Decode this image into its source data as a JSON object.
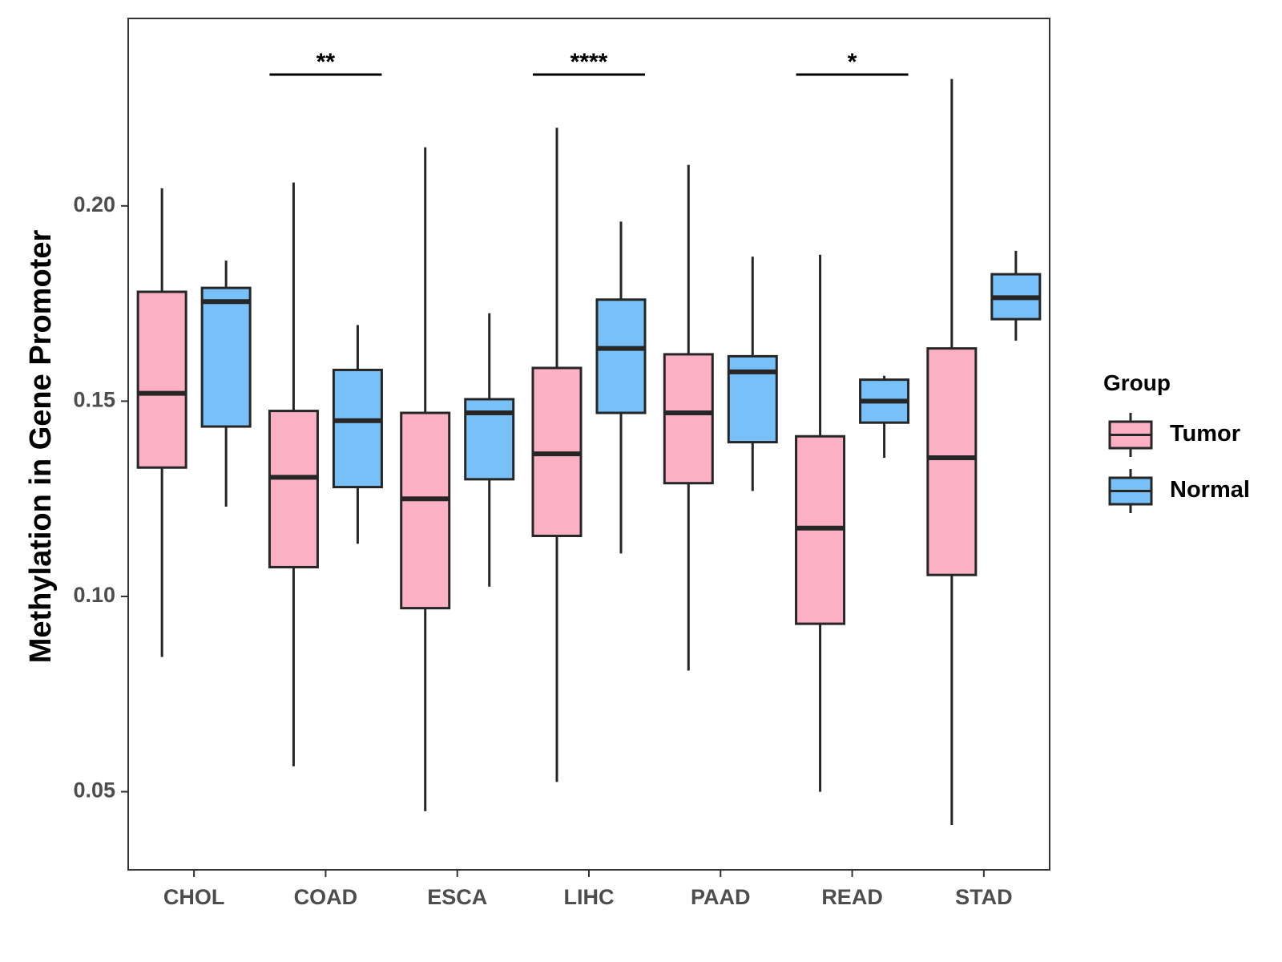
{
  "chart_data": {
    "type": "boxplot",
    "title": "",
    "xlabel": "",
    "ylabel": "Methylation in Gene Promoter",
    "ylim": [
      0.03,
      0.248
    ],
    "yticks": [
      "0.05",
      "0.10",
      "0.15",
      "0.20"
    ],
    "grid": false,
    "categories": [
      "CHOL",
      "COAD",
      "ESCA",
      "LIHC",
      "PAAD",
      "READ",
      "STAD"
    ],
    "legend": {
      "title": "Group",
      "position": "right",
      "entries": [
        {
          "name": "Tumor",
          "color": "#FBB1C3"
        },
        {
          "name": "Normal",
          "color": "#78C1F8"
        }
      ]
    },
    "series": [
      {
        "name": "Tumor",
        "color": "#FBB1C3",
        "boxes": [
          {
            "category": "CHOL",
            "min": 0.0845,
            "q1": 0.133,
            "median": 0.152,
            "q3": 0.178,
            "max": 0.2045
          },
          {
            "category": "COAD",
            "min": 0.0565,
            "q1": 0.1075,
            "median": 0.1305,
            "q3": 0.1475,
            "max": 0.206
          },
          {
            "category": "ESCA",
            "min": 0.045,
            "q1": 0.097,
            "median": 0.125,
            "q3": 0.147,
            "max": 0.215
          },
          {
            "category": "LIHC",
            "min": 0.0525,
            "q1": 0.1155,
            "median": 0.1365,
            "q3": 0.1585,
            "max": 0.22
          },
          {
            "category": "PAAD",
            "min": 0.081,
            "q1": 0.129,
            "median": 0.147,
            "q3": 0.162,
            "max": 0.2105
          },
          {
            "category": "READ",
            "min": 0.05,
            "q1": 0.093,
            "median": 0.1175,
            "q3": 0.141,
            "max": 0.1875
          },
          {
            "category": "STAD",
            "min": 0.0415,
            "q1": 0.1055,
            "median": 0.1355,
            "q3": 0.1635,
            "max": 0.2325
          }
        ]
      },
      {
        "name": "Normal",
        "color": "#78C1F8",
        "boxes": [
          {
            "category": "CHOL",
            "min": 0.123,
            "q1": 0.1435,
            "median": 0.1755,
            "q3": 0.179,
            "max": 0.186
          },
          {
            "category": "COAD",
            "min": 0.1135,
            "q1": 0.128,
            "median": 0.145,
            "q3": 0.158,
            "max": 0.1695
          },
          {
            "category": "ESCA",
            "min": 0.1025,
            "q1": 0.13,
            "median": 0.147,
            "q3": 0.1505,
            "max": 0.1725
          },
          {
            "category": "LIHC",
            "min": 0.111,
            "q1": 0.147,
            "median": 0.1635,
            "q3": 0.176,
            "max": 0.196
          },
          {
            "category": "PAAD",
            "min": 0.127,
            "q1": 0.1395,
            "median": 0.1575,
            "q3": 0.1615,
            "max": 0.187
          },
          {
            "category": "READ",
            "min": 0.1355,
            "q1": 0.1445,
            "median": 0.15,
            "q3": 0.1555,
            "max": 0.1565
          },
          {
            "category": "STAD",
            "min": 0.1655,
            "q1": 0.171,
            "median": 0.1765,
            "q3": 0.1825,
            "max": 0.1885
          }
        ]
      }
    ],
    "annotations": [
      {
        "category": "COAD",
        "label": "**"
      },
      {
        "category": "LIHC",
        "label": "****"
      },
      {
        "category": "READ",
        "label": "*"
      }
    ]
  }
}
